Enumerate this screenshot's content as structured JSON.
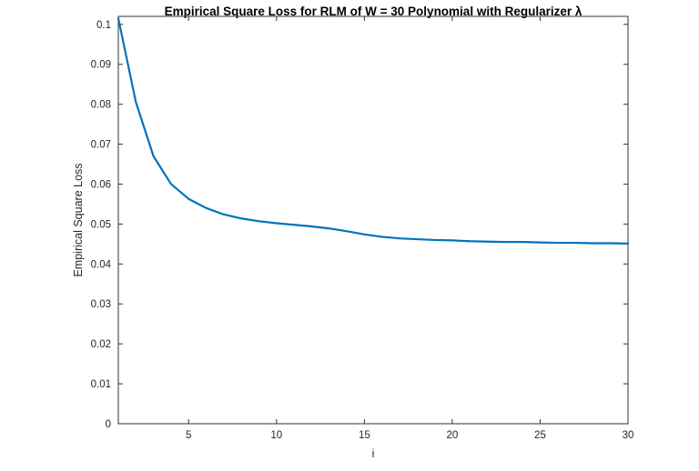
{
  "figure": {
    "background": "#ffffff"
  },
  "chart_data": {
    "type": "line",
    "title": "Empirical Square Loss for RLM of W = 30 Polynomial with Regularizer λ",
    "xlabel": "i",
    "ylabel": "Empirical Square Loss",
    "xlim": [
      1,
      30
    ],
    "ylim": [
      0,
      0.102
    ],
    "grid": false,
    "legend": null,
    "axis_color": "#333333",
    "line": {
      "color": "#0072BD",
      "width": 2.2
    },
    "x_ticks": {
      "values": [
        5,
        10,
        15,
        20,
        25,
        30
      ],
      "labels": [
        "5",
        "10",
        "15",
        "20",
        "25",
        "30"
      ]
    },
    "y_ticks": {
      "values": [
        0,
        0.01,
        0.02,
        0.03,
        0.04,
        0.05,
        0.06,
        0.07,
        0.08,
        0.09,
        0.1
      ],
      "labels": [
        "0",
        "0.01",
        "0.02",
        "0.03",
        "0.04",
        "0.05",
        "0.06",
        "0.07",
        "0.08",
        "0.09",
        "0.1"
      ]
    },
    "series": [
      {
        "name": "Empirical Square Loss",
        "x": [
          1,
          2,
          3,
          4,
          5,
          6,
          7,
          8,
          9,
          10,
          11,
          12,
          13,
          14,
          15,
          16,
          17,
          18,
          19,
          20,
          21,
          22,
          23,
          24,
          25,
          26,
          27,
          28,
          29,
          30
        ],
        "y": [
          0.1015,
          0.0805,
          0.067,
          0.06,
          0.0563,
          0.054,
          0.0524,
          0.0514,
          0.0507,
          0.0502,
          0.0498,
          0.0494,
          0.0489,
          0.0482,
          0.0474,
          0.0468,
          0.0464,
          0.0462,
          0.046,
          0.0459,
          0.0457,
          0.0456,
          0.0455,
          0.0455,
          0.0454,
          0.0453,
          0.0453,
          0.0452,
          0.0452,
          0.0451
        ]
      }
    ]
  }
}
